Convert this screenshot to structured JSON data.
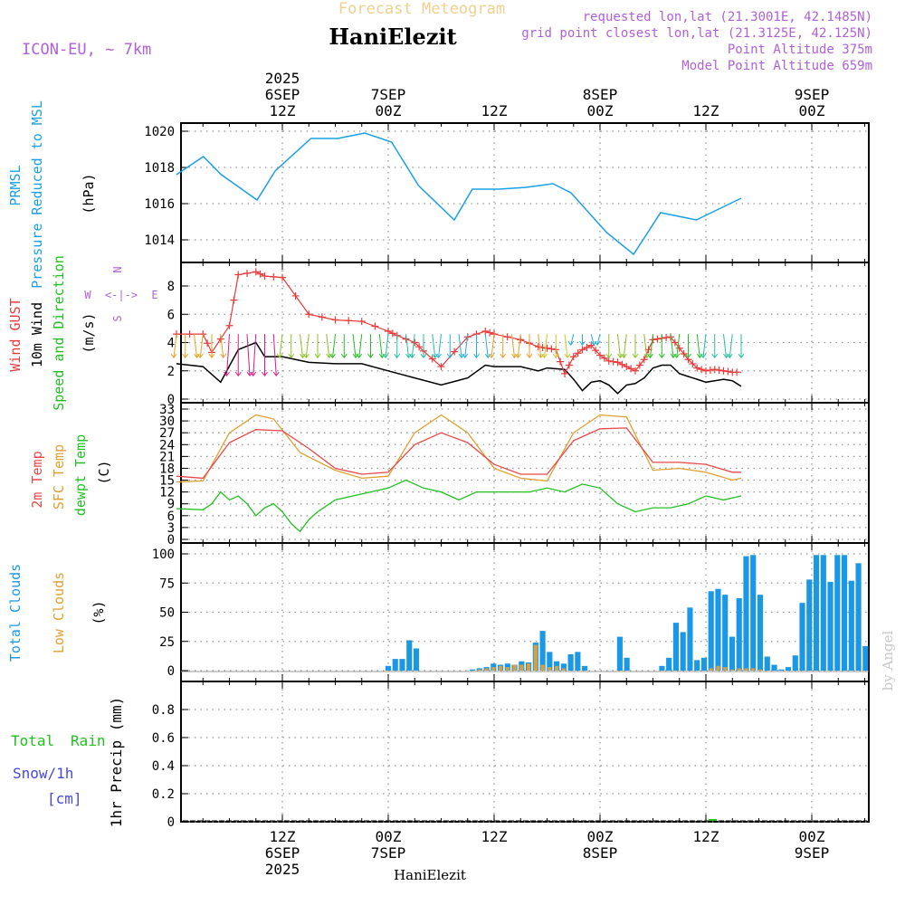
{
  "header": {
    "title_faded": "Forecast Meteogram",
    "location": "HaniElezit",
    "model": "ICON-EU, ~ 7km",
    "requested": "requested lon,lat (21.3001E, 42.1485N)",
    "gridpoint": "grid point closest lon,lat (21.3125E, 42.125N)",
    "point_alt": "Point Altitude 375m",
    "model_alt": "Model Point Altitude 659m"
  },
  "time_axis": {
    "top": [
      {
        "lines": [
          "2025",
          "6SEP",
          "12Z"
        ]
      },
      {
        "lines": [
          "7SEP",
          "00Z"
        ]
      },
      {
        "lines": [
          "12Z"
        ]
      },
      {
        "lines": [
          "8SEP",
          "00Z"
        ]
      },
      {
        "lines": [
          "12Z"
        ]
      },
      {
        "lines": [
          "9SEP",
          "00Z"
        ]
      }
    ],
    "bottom": [
      {
        "lines": [
          "12Z",
          "6SEP",
          "2025"
        ]
      },
      {
        "lines": [
          "00Z",
          "7SEP"
        ]
      },
      {
        "lines": [
          "12Z"
        ]
      },
      {
        "lines": [
          "00Z",
          "8SEP"
        ]
      },
      {
        "lines": [
          "12Z"
        ]
      },
      {
        "lines": [
          "00Z",
          "9SEP"
        ]
      }
    ]
  },
  "compass": {
    "n": "N",
    "s": "S",
    "w": "W",
    "e": "E",
    "arrows": "<-|->"
  },
  "watermark": "by Angel",
  "footer": "HaniElezit",
  "colors": {
    "pressure": "#1aa0e6",
    "gust": "#e83c3c",
    "wind": "#000000",
    "temp": "#e84848",
    "sfc": "#e0a030",
    "dewpt": "#22c022",
    "total_cloud": "#1a98e6",
    "low_cloud": "#d8a040",
    "rain": "#22c022",
    "snow": "#4848e0",
    "label_purple": "#b060d8"
  },
  "chart_data": [
    {
      "type": "line",
      "title": "PRMSL Pressure Reduced to MSL",
      "ylabels": [
        "PRMSL",
        "Pressure Reduced to MSL"
      ],
      "unit": "(hPa)",
      "ylim": [
        1012.6,
        1020.6
      ],
      "yticks": [
        1014,
        1016,
        1018,
        1020
      ],
      "x_hours": [
        0,
        3,
        6,
        9,
        12,
        15,
        18,
        21,
        24,
        27,
        30,
        33,
        36,
        39,
        42,
        45,
        48,
        51,
        54,
        57,
        60,
        63,
        66,
        69,
        72
      ],
      "series": [
        {
          "name": "PRMSL",
          "values": [
            1017.6,
            1018.6,
            1017.6,
            1016.2,
            1017.8,
            1019.6,
            1019.6,
            1019.9,
            1019.4,
            1017.0,
            1015.1,
            1016.8,
            1016.8,
            1016.9,
            1017.1,
            1016.6,
            1014.4,
            1013.2,
            1015.5,
            1015.1,
            1016.3
          ]
        }
      ],
      "series_x": [
        0,
        3,
        5,
        9,
        11,
        15,
        18,
        21,
        24,
        27,
        31,
        33,
        36,
        39,
        42,
        44,
        48,
        51,
        54,
        58,
        63
      ]
    },
    {
      "type": "line",
      "title": "Wind",
      "ylabels": [
        "Wind GUST",
        "10m Wind",
        "Speed and Direction"
      ],
      "unit": "(m/s)",
      "ylim": [
        0,
        9.6
      ],
      "yticks": [
        0,
        2,
        4,
        6,
        8
      ],
      "series": [
        {
          "name": "Wind GUST",
          "x": [
            0,
            3,
            4,
            6,
            7,
            9,
            10,
            12,
            15,
            18,
            21,
            24,
            25,
            27,
            28,
            30,
            33,
            35,
            36,
            39,
            41,
            42,
            43,
            44,
            45,
            46,
            47,
            48,
            49,
            50,
            51,
            52,
            53,
            54,
            55,
            56,
            57,
            58,
            59,
            60,
            61,
            62,
            63,
            64
          ],
          "values": [
            4.6,
            4.6,
            3.3,
            5.2,
            8.8,
            9.0,
            8.7,
            8.6,
            6.0,
            5.6,
            5.5,
            4.8,
            4.5,
            4.0,
            3.4,
            2.3,
            4.4,
            4.8,
            4.6,
            4.2,
            3.7,
            3.6,
            3.5,
            1.8,
            3.0,
            3.5,
            3.8,
            3.1,
            2.7,
            2.6,
            2.3,
            2.0,
            2.8,
            4.2,
            4.3,
            4.4,
            3.6,
            2.8,
            2.2,
            2.0,
            2.1,
            2.0,
            1.9,
            1.9
          ]
        },
        {
          "name": "10m Wind",
          "x": [
            0,
            3,
            5,
            7,
            9,
            10,
            12,
            15,
            18,
            21,
            24,
            27,
            30,
            33,
            35,
            36,
            39,
            41,
            42,
            44,
            45,
            46,
            47,
            48,
            49,
            50,
            51,
            52,
            53,
            54,
            55,
            56,
            57,
            58,
            59,
            60,
            61,
            62,
            63,
            64
          ],
          "values": [
            2.5,
            2.3,
            1.2,
            3.5,
            4.0,
            3.0,
            3.0,
            2.6,
            2.5,
            2.5,
            2.0,
            1.5,
            1.0,
            1.5,
            2.4,
            2.3,
            2.3,
            2.0,
            2.2,
            2.1,
            1.4,
            0.6,
            1.2,
            1.3,
            1.0,
            0.4,
            1.0,
            1.1,
            1.5,
            2.2,
            2.4,
            2.4,
            1.8,
            1.6,
            1.4,
            1.2,
            1.3,
            1.4,
            1.3,
            0.9
          ]
        }
      ]
    },
    {
      "type": "line",
      "title": "Temperature",
      "ylabels": [
        "2m Temp",
        "SFC Temp",
        "dewpt Temp"
      ],
      "unit": "(C)",
      "ylim": [
        0,
        33.5
      ],
      "yticks": [
        0,
        3,
        6,
        9,
        12,
        15,
        18,
        21,
        24,
        27,
        30,
        33
      ],
      "series": [
        {
          "name": "2m Temp",
          "x": [
            0,
            3,
            6,
            9,
            12,
            15,
            18,
            21,
            24,
            27,
            30,
            33,
            36,
            39,
            42,
            45,
            48,
            51,
            54,
            57,
            60,
            63,
            64
          ],
          "values": [
            16,
            15.5,
            24.5,
            27.8,
            27.5,
            23,
            18,
            16.5,
            17,
            24,
            27,
            24.5,
            19,
            16.5,
            16.5,
            25,
            28,
            28.2,
            19.5,
            19.5,
            19,
            17,
            17
          ]
        },
        {
          "name": "SFC Temp",
          "x": [
            0,
            3,
            6,
            9,
            11,
            14,
            18,
            21,
            24,
            27,
            30,
            33,
            36,
            39,
            42,
            45,
            48,
            51,
            54,
            57,
            60,
            63,
            64
          ],
          "values": [
            14.5,
            14.8,
            27,
            31.5,
            30.5,
            22,
            17.5,
            15.5,
            16,
            27,
            31.5,
            27,
            18,
            15.5,
            14.8,
            27,
            31.5,
            31,
            17.5,
            18,
            17,
            15,
            15.5
          ]
        },
        {
          "name": "dewpt Temp",
          "x": [
            0,
            3,
            4,
            5,
            6,
            7,
            8,
            9,
            10,
            11,
            12,
            13,
            14,
            15,
            16,
            18,
            20,
            22,
            24,
            26,
            28,
            30,
            32,
            34,
            36,
            38,
            40,
            42,
            44,
            46,
            48,
            50,
            52,
            54,
            56,
            58,
            60,
            62,
            64
          ],
          "values": [
            7.8,
            7.5,
            9,
            12,
            10,
            11,
            9,
            6,
            8,
            9,
            7,
            4,
            2,
            5,
            7,
            10,
            11,
            12,
            13,
            15,
            13,
            12,
            10,
            12,
            12,
            12,
            12,
            13,
            12,
            14,
            13,
            9,
            7,
            8,
            8,
            9,
            11,
            10,
            11
          ]
        }
      ]
    },
    {
      "type": "bar",
      "title": "Clouds",
      "ylabels": [
        "Total Clouds",
        "Low Clouds"
      ],
      "unit": "(%)",
      "ylim": [
        -4,
        106
      ],
      "yticks": [
        0,
        25,
        50,
        75,
        100
      ],
      "series": [
        {
          "name": "Total Clouds",
          "values": [
            0,
            0,
            0,
            0,
            0,
            0,
            0,
            0,
            0,
            0,
            0,
            0,
            0,
            0,
            0,
            0,
            0,
            0,
            0,
            0,
            0,
            0,
            0,
            0,
            0,
            0,
            0,
            0,
            0,
            4,
            10,
            10,
            26,
            19,
            0,
            0,
            0,
            0,
            0,
            0,
            0,
            1,
            2,
            3,
            6,
            5,
            6,
            5,
            8,
            7,
            24,
            34,
            16,
            8,
            6,
            14,
            16,
            4,
            0,
            0,
            0,
            0,
            29,
            11,
            0,
            0,
            0,
            0,
            4,
            11,
            41,
            33,
            54,
            9,
            11,
            68,
            70,
            65,
            29,
            62,
            98,
            99,
            65,
            12,
            5,
            1,
            3,
            13,
            58,
            78,
            99,
            99,
            76,
            99,
            99,
            77,
            92,
            21
          ]
        },
        {
          "name": "Low Clouds",
          "values": [
            0,
            0,
            0,
            0,
            0,
            0,
            0,
            0,
            0,
            0,
            0,
            0,
            0,
            0,
            0,
            0,
            0,
            0,
            0,
            0,
            0,
            0,
            0,
            0,
            0,
            0,
            0,
            0,
            0,
            0,
            0,
            0,
            0,
            0,
            0,
            0,
            0,
            0,
            0,
            0,
            0,
            0,
            1,
            2,
            3,
            4,
            3,
            5,
            5,
            6,
            22,
            5,
            3,
            4,
            2,
            0,
            0,
            0,
            0,
            0,
            0,
            0,
            0,
            0,
            0,
            0,
            0,
            0,
            0,
            0,
            0,
            0,
            0,
            0,
            0,
            2,
            4,
            3,
            1,
            2,
            2,
            2,
            1,
            0,
            0,
            0,
            0,
            0,
            0,
            0,
            0,
            0,
            0,
            0,
            0,
            0,
            0,
            0
          ]
        }
      ]
    },
    {
      "type": "line",
      "title": "Precipitation",
      "ylabels": [
        "1hr Precip (mm)"
      ],
      "side_labels": [
        "Total",
        "Rain",
        "Snow/1h",
        "[cm]"
      ],
      "ylim": [
        0,
        1.0
      ],
      "yticks": [
        0,
        0.2,
        0.4,
        0.6,
        0.8
      ],
      "ytick_labels": [
        "0",
        "0.2",
        "0.4",
        "0.6",
        "0.8"
      ],
      "series": [
        {
          "name": "Total Rain",
          "values": [
            0
          ]
        },
        {
          "name": "Snow/1h",
          "values": [
            0
          ]
        }
      ]
    }
  ]
}
